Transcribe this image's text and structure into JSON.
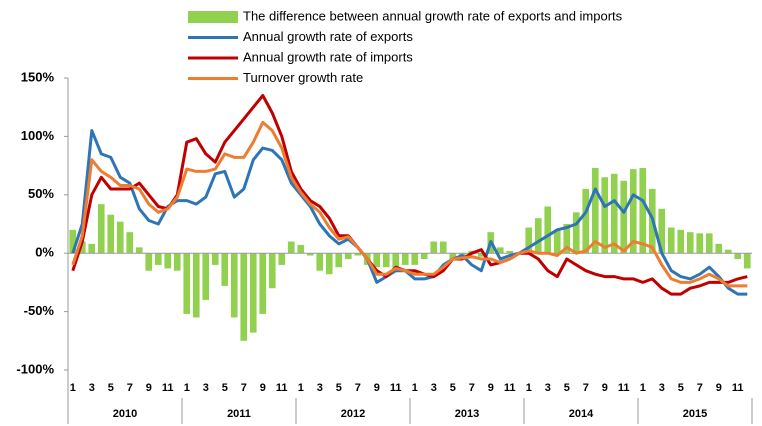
{
  "chart_data": {
    "type": "bar-line",
    "categories": [
      "1",
      null,
      "3",
      null,
      "5",
      null,
      "7",
      null,
      "9",
      null,
      "11",
      null,
      "1",
      null,
      "3",
      null,
      "5",
      null,
      "7",
      null,
      "9",
      null,
      "11",
      null,
      "1",
      null,
      "3",
      null,
      "5",
      null,
      "7",
      null,
      "9",
      null,
      "11",
      null,
      "1",
      null,
      "3",
      null,
      "5",
      null,
      "7",
      null,
      "9",
      null,
      "11",
      null,
      "1",
      null,
      "3",
      null,
      "5",
      null,
      "7",
      null,
      "9",
      null,
      "11",
      null,
      "1",
      null,
      "3",
      null,
      "5",
      null,
      "7",
      null,
      "9",
      null,
      "11",
      null
    ],
    "groups": [
      "2010",
      "2011",
      "2012",
      "2013",
      "2014",
      "2015"
    ],
    "series": [
      {
        "name": "The difference between annual growth rate of exports and imports",
        "kind": "bar",
        "color": "#92d050",
        "values": [
          20,
          10,
          8,
          42,
          33,
          27,
          18,
          5,
          -15,
          -10,
          -13,
          -15,
          -52,
          -55,
          -40,
          -10,
          -28,
          -55,
          -75,
          -68,
          -52,
          -30,
          -10,
          10,
          7,
          -2,
          -15,
          -18,
          -12,
          -5,
          -2,
          -10,
          -12,
          -12,
          -15,
          -10,
          -10,
          -5,
          10,
          10,
          -5,
          -5,
          2,
          -3,
          18,
          5,
          2,
          0,
          22,
          30,
          40,
          20,
          25,
          35,
          55,
          73,
          65,
          68,
          62,
          72,
          73,
          55,
          38,
          22,
          20,
          18,
          17,
          17,
          8,
          3,
          -5,
          -13
        ]
      },
      {
        "name": "Annual growth rate of exports",
        "kind": "line",
        "color": "#2e75b6",
        "values": [
          0,
          25,
          105,
          85,
          82,
          65,
          60,
          38,
          28,
          25,
          40,
          45,
          45,
          42,
          48,
          68,
          70,
          48,
          55,
          80,
          90,
          88,
          80,
          60,
          50,
          40,
          25,
          15,
          8,
          12,
          5,
          -5,
          -25,
          -20,
          -15,
          -15,
          -22,
          -22,
          -20,
          -10,
          -5,
          -2,
          -10,
          -15,
          10,
          -5,
          -2,
          0,
          5,
          10,
          15,
          20,
          22,
          25,
          35,
          55,
          40,
          45,
          35,
          50,
          45,
          30,
          0,
          -15,
          -20,
          -22,
          -18,
          -12,
          -20,
          -30,
          -35,
          -35
        ]
      },
      {
        "name": "Annual growth rate of imports",
        "kind": "line",
        "color": "#c00000",
        "values": [
          -15,
          10,
          50,
          65,
          55,
          55,
          55,
          60,
          50,
          40,
          38,
          50,
          95,
          98,
          85,
          78,
          95,
          105,
          115,
          125,
          135,
          120,
          100,
          70,
          55,
          45,
          40,
          30,
          15,
          15,
          5,
          -5,
          -15,
          -20,
          -12,
          -15,
          -15,
          -18,
          -20,
          -15,
          -5,
          -5,
          0,
          3,
          -10,
          -8,
          -5,
          0,
          0,
          -5,
          -15,
          -20,
          -5,
          -10,
          -15,
          -18,
          -20,
          -20,
          -22,
          -22,
          -25,
          -22,
          -30,
          -35,
          -35,
          -30,
          -28,
          -25,
          -25,
          -25,
          -22,
          -20
        ]
      },
      {
        "name": "Turnover growth rate",
        "kind": "line",
        "color": "#ed7d31",
        "values": [
          -10,
          15,
          80,
          70,
          65,
          58,
          58,
          55,
          42,
          35,
          38,
          48,
          72,
          70,
          70,
          72,
          85,
          82,
          82,
          95,
          112,
          105,
          90,
          65,
          52,
          42,
          35,
          22,
          12,
          14,
          5,
          -5,
          -18,
          -18,
          -13,
          -15,
          -18,
          -18,
          -18,
          -12,
          -5,
          -4,
          -3,
          -5,
          -5,
          -8,
          -5,
          0,
          2,
          0,
          0,
          -2,
          5,
          0,
          2,
          10,
          5,
          8,
          2,
          10,
          8,
          5,
          -10,
          -22,
          -25,
          -25,
          -22,
          -18,
          -22,
          -28,
          -28,
          -28
        ]
      }
    ],
    "ylim": [
      -100,
      150
    ],
    "yticks": [
      {
        "value": -100,
        "label": "-100%"
      },
      {
        "value": -50,
        "label": "-50%"
      },
      {
        "value": 0,
        "label": "0%"
      },
      {
        "value": 50,
        "label": "50%"
      },
      {
        "value": 100,
        "label": "100%"
      },
      {
        "value": 150,
        "label": "150%"
      }
    ],
    "legend": "top"
  }
}
